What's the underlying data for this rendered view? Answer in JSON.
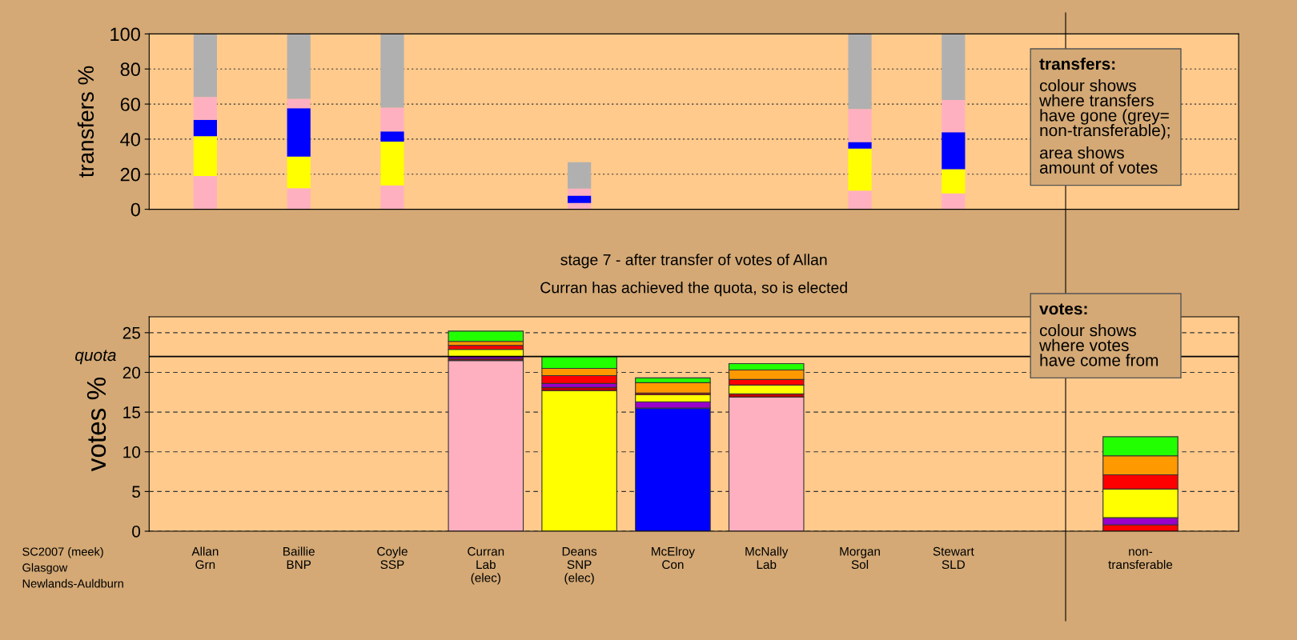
{
  "chart_data": [
    {
      "type": "bar",
      "stacked": true,
      "categories": [
        null,
        null,
        null,
        null,
        null,
        null,
        null,
        null,
        null,
        null,
        null
      ],
      "series": [
        {
          "color": "#ffb0c0",
          "values": [
            19,
            12,
            13.6,
            null,
            3.6,
            null,
            null,
            10.6,
            9.1,
            null,
            null
          ]
        },
        {
          "color": "#ffff00",
          "values": [
            22.7,
            18,
            25,
            null,
            null,
            null,
            null,
            24,
            13.7,
            null,
            null
          ]
        },
        {
          "color": "#0000ff",
          "values": [
            9.3,
            27.6,
            5.8,
            null,
            4.2,
            null,
            null,
            3.8,
            21.1,
            null,
            null
          ]
        },
        {
          "color": "#ffb0c0",
          "values": [
            13,
            5.4,
            13.6,
            null,
            4,
            null,
            null,
            18.8,
            18.4,
            null,
            null
          ]
        },
        {
          "color": "#b0b0b0",
          "values": [
            36,
            37,
            42,
            null,
            15,
            null,
            null,
            42.8,
            37.7,
            null,
            null
          ]
        }
      ],
      "ylim": [
        0,
        100
      ],
      "yticks": [
        0,
        20,
        40,
        60,
        80,
        100
      ],
      "ylabel": "transfers %",
      "grid": "y",
      "annotations": [
        "transfers:",
        "colour shows\nwhere transfers\nhave gone (grey=\nnon-transferable);",
        "area shows\namount of votes"
      ]
    },
    {
      "type": "bar",
      "stacked": true,
      "title": "stage 7 - after transfer of votes of Allan",
      "subtitle": "Curran has achieved the quota, so is elected",
      "categories": [
        "Allan\nGrn",
        "Baillie\nBNP",
        "Coyle\nSSP",
        "Curran\nLab\n(elec)",
        "Deans\nSNP\n(elec)",
        "McElroy\nCon",
        "McNally\nLab",
        "Morgan\nSol",
        "Stewart\nSLD",
        null,
        "non-\ntransferable"
      ],
      "series": [
        {
          "values": [
            null,
            null,
            null,
            21.5,
            17.7,
            15.5,
            16.9,
            null,
            null,
            null,
            0.8
          ],
          "colors": [
            null,
            null,
            null,
            "#ffb0c0",
            "#ffff00",
            "#0000ff",
            "#ffb0c0",
            null,
            null,
            null,
            "#ff0000"
          ]
        },
        {
          "values": [
            null,
            null,
            null,
            0.2,
            0.4,
            0.8,
            0.4,
            null,
            null,
            null,
            0.9
          ],
          "colors": [
            null,
            null,
            null,
            "#c00000",
            "#c00000",
            "#9900cc",
            "#c00000",
            null,
            null,
            null,
            "#9900cc"
          ]
        },
        {
          "values": [
            null,
            null,
            null,
            0.3,
            0.5,
            0.9,
            1.1,
            null,
            null,
            null,
            3.6
          ],
          "colors": [
            null,
            null,
            null,
            "#9900cc",
            "#9900cc",
            "#ffff00",
            "#ffff00",
            null,
            null,
            null,
            "#ffff00"
          ]
        },
        {
          "values": [
            null,
            null,
            null,
            0.9,
            1.0,
            0.2,
            0.7,
            null,
            null,
            null,
            1.8
          ],
          "colors": [
            null,
            null,
            null,
            "#ffff00",
            "#ff0000",
            "#c00000",
            "#ff0000",
            null,
            null,
            null,
            "#ff0000"
          ]
        },
        {
          "values": [
            null,
            null,
            null,
            0.5,
            0.9,
            1.3,
            1.2,
            null,
            null,
            null,
            2.4
          ],
          "colors": [
            null,
            null,
            null,
            "#ff0000",
            "#ff9900",
            "#ff9900",
            "#ff9900",
            null,
            null,
            null,
            "#ff9900"
          ]
        },
        {
          "values": [
            null,
            null,
            null,
            0.5,
            1.5,
            0.6,
            0.8,
            null,
            null,
            null,
            2.4
          ],
          "colors": [
            null,
            null,
            null,
            "#ff9900",
            "#22ff00",
            "#22ff00",
            "#22ff00",
            null,
            null,
            null,
            "#22ff00"
          ]
        },
        {
          "values": [
            null,
            null,
            null,
            1.3,
            null,
            null,
            null,
            null,
            null,
            null,
            null
          ],
          "colors": [
            null,
            null,
            null,
            "#22ff00",
            null,
            null,
            null,
            null,
            null,
            null,
            null
          ]
        }
      ],
      "ylim": [
        0,
        27
      ],
      "yticks": [
        0,
        5,
        10,
        15,
        20,
        25
      ],
      "ylabel": "votes %",
      "grid": "y",
      "ref_lines": [
        {
          "axis": "y",
          "value": 22,
          "label": "quota",
          "color": "#000000"
        }
      ],
      "annotations": [
        "votes:",
        "colour shows\nwhere votes\nhave come from",
        "SC2007 (meek)\nGlasgow\nNewlands-Auldburn"
      ]
    }
  ]
}
